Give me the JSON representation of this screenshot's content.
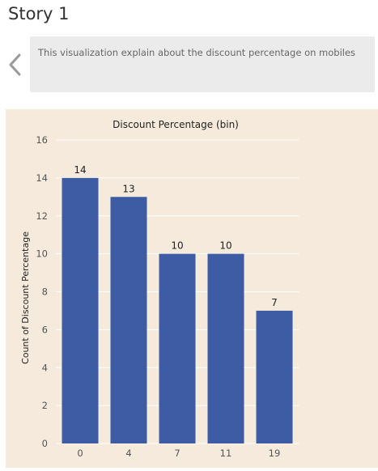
{
  "story": {
    "title": "Story 1",
    "caption": "This visualization explain about the discount percentage on mobiles"
  },
  "icons": {
    "back": "chevron-left-icon"
  },
  "colors": {
    "bar": "#3d5ca3",
    "panel_bg": "#f5eadb",
    "caption_bg": "#ebebeb"
  },
  "chart_data": {
    "type": "bar",
    "title": "Discount Percentage (bin)",
    "xlabel": "",
    "ylabel": "Count of Discount Percentage",
    "categories": [
      "0",
      "4",
      "7",
      "11",
      "19"
    ],
    "values": [
      14,
      13,
      10,
      10,
      7
    ],
    "data_labels": [
      "14",
      "13",
      "10",
      "10",
      "7"
    ],
    "ylim": [
      0,
      16
    ],
    "yticks": [
      0,
      2,
      4,
      6,
      8,
      10,
      12,
      14,
      16
    ],
    "grid": true
  }
}
